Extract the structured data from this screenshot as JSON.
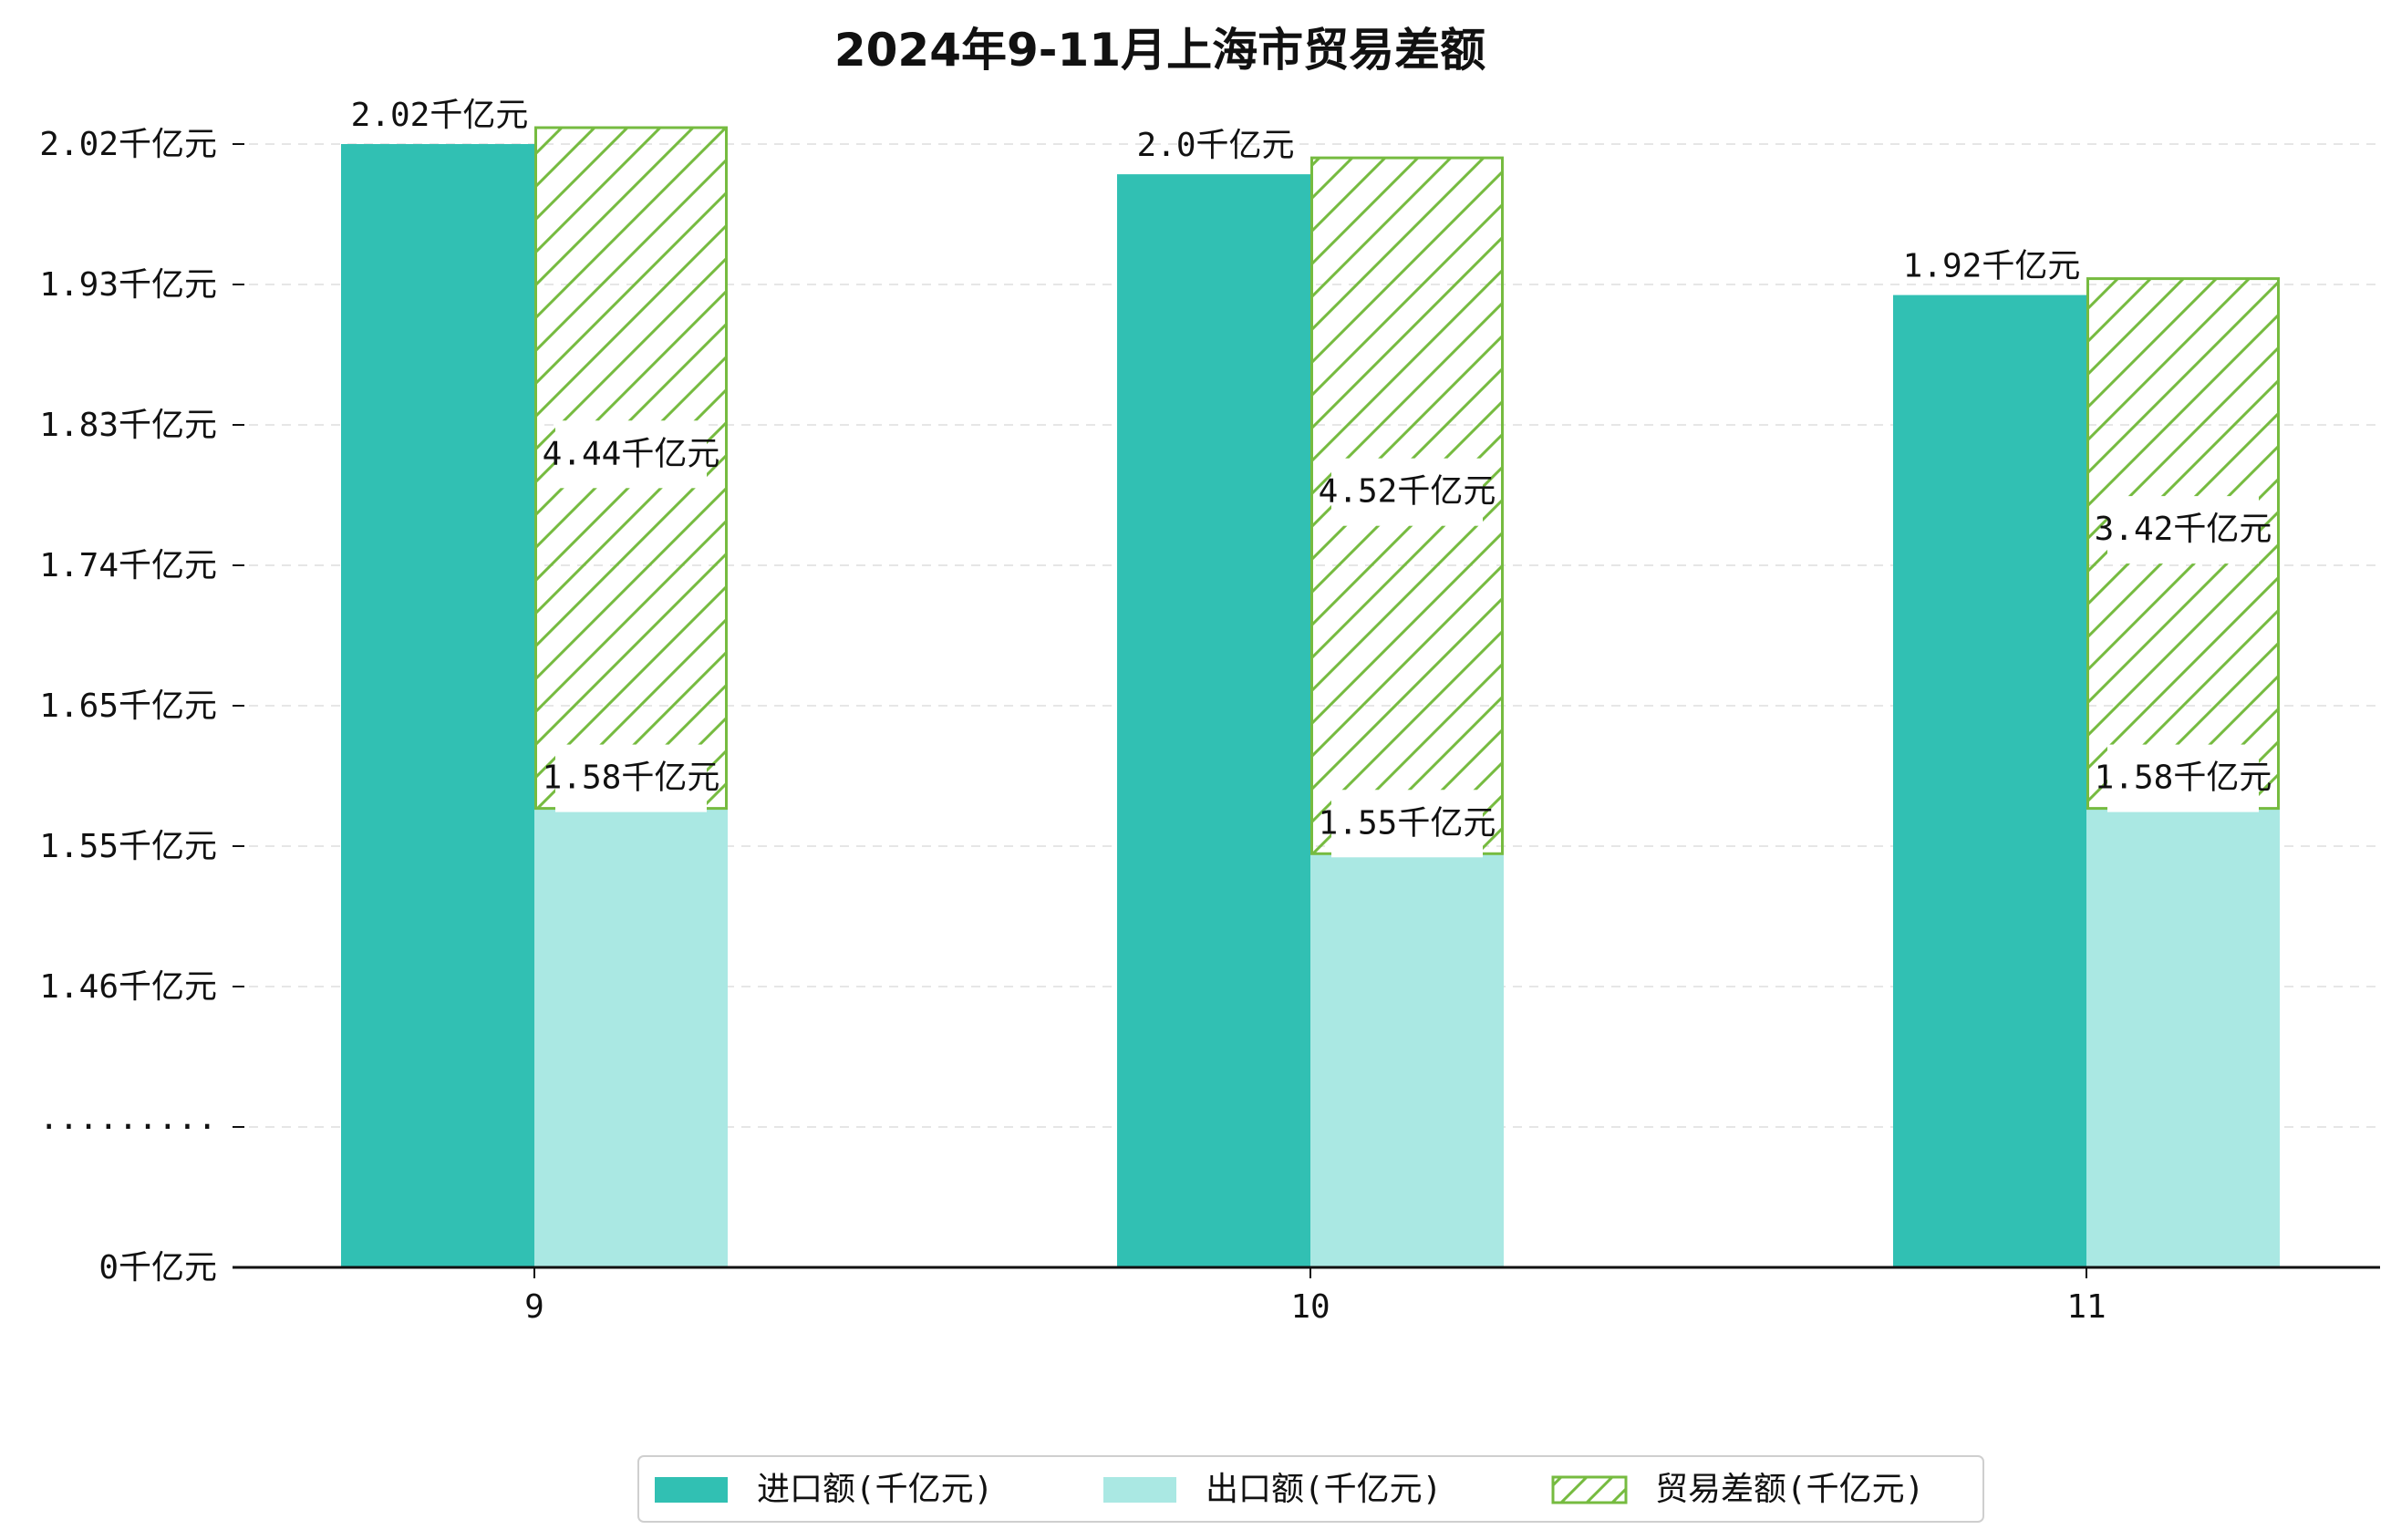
{
  "chart_data": {
    "type": "bar",
    "title": "2024年9-11月上海市贸易差额",
    "categories": [
      "9",
      "10",
      "11"
    ],
    "series": [
      {
        "name": "进口额(千亿元)",
        "values": [
          2.02,
          2.0,
          1.92
        ],
        "labels": [
          "2.02千亿元",
          "2.0千亿元",
          "1.92千亿元"
        ],
        "color": "#31c0b3"
      },
      {
        "name": "出口额(千亿元)",
        "values": [
          1.58,
          1.55,
          1.58
        ],
        "labels": [
          "1.58千亿元",
          "1.55千亿元",
          "1.58千亿元"
        ],
        "color": "#aae8e3"
      },
      {
        "name": "贸易差额(千亿元)",
        "values": [
          4.44,
          4.52,
          3.42
        ],
        "labels": [
          "4.44千亿元",
          "4.52千亿元",
          "3.42千亿元"
        ],
        "color": "#76bb40",
        "style": "hatched",
        "stacked_on": "出口额(千亿元)"
      }
    ],
    "y_ticks": [
      "0千亿元",
      "·········",
      "1.46千亿元",
      "1.55千亿元",
      "1.65千亿元",
      "1.74千亿元",
      "1.83千亿元",
      "1.93千亿元",
      "2.02千亿元"
    ],
    "y_axis_break": true,
    "legend_position": "bottom-center",
    "grid": true
  }
}
